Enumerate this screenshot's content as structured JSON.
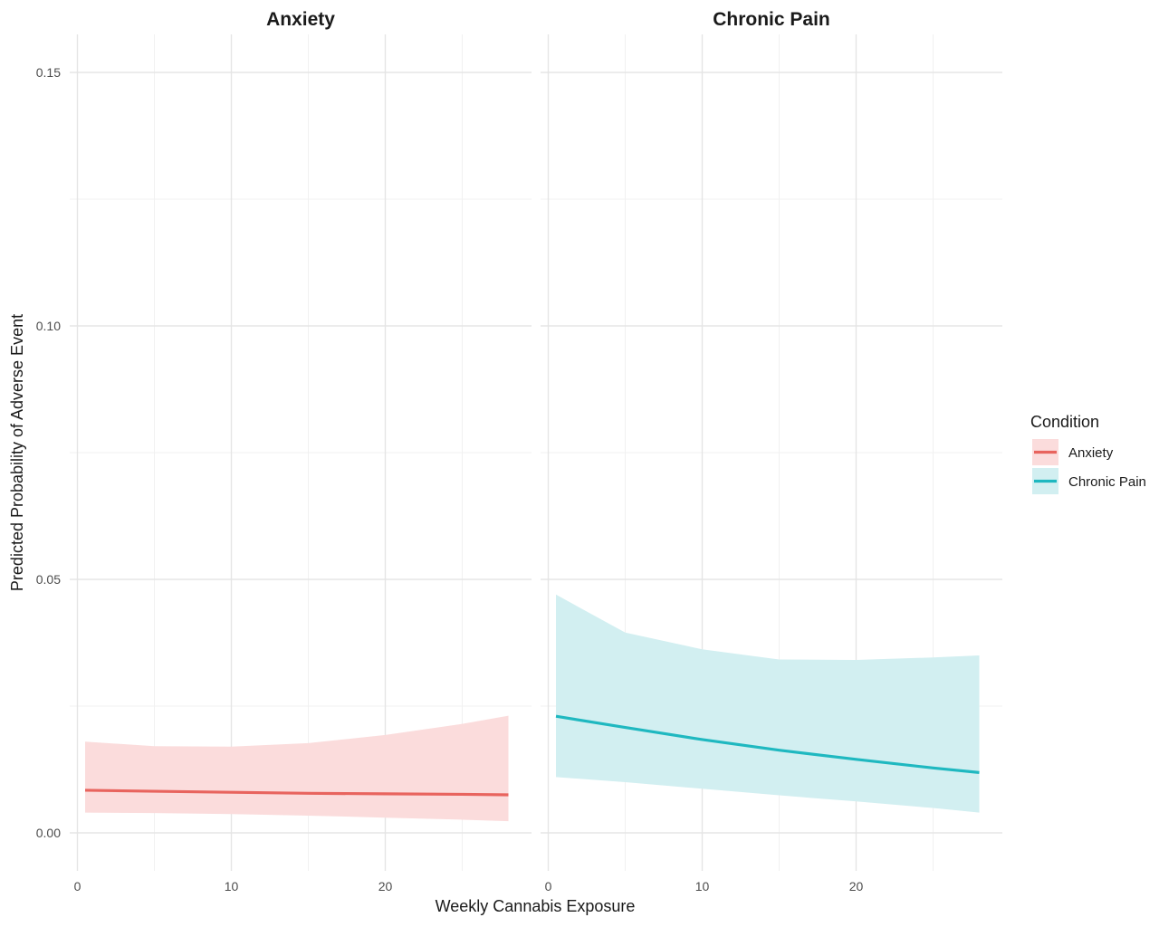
{
  "chart_data": {
    "type": "line",
    "facet_by": "Condition",
    "xlabel": "Weekly Cannabis Exposure",
    "ylabel": "Predicted Probability of Adverse Event",
    "xlim": [
      -0.5,
      29.5
    ],
    "ylim": [
      -0.0075,
      0.1575
    ],
    "x_ticks": [
      0,
      10,
      20
    ],
    "x_tick_labels": [
      "0",
      "10",
      "20"
    ],
    "y_ticks": [
      0.0,
      0.05,
      0.1,
      0.15
    ],
    "y_tick_labels": [
      "0.00",
      "0.05",
      "0.10",
      "0.15"
    ],
    "grid": true,
    "legend": {
      "title": "Condition",
      "placement": "right",
      "entries": [
        "Anxiety",
        "Chronic Pain"
      ]
    },
    "panels": [
      {
        "title": "Anxiety",
        "color": "#E8645E",
        "ribbon_color": "#FBDCDC",
        "x": [
          0.5,
          5,
          10,
          15,
          20,
          25,
          28
        ],
        "fit": [
          0.0084,
          0.0082,
          0.008,
          0.0078,
          0.0077,
          0.0076,
          0.0075
        ],
        "lower": [
          0.004,
          0.0039,
          0.0037,
          0.0034,
          0.003,
          0.0026,
          0.0023
        ],
        "upper": [
          0.018,
          0.0171,
          0.017,
          0.0177,
          0.0193,
          0.0215,
          0.0231
        ]
      },
      {
        "title": "Chronic Pain",
        "color": "#1FB8C0",
        "ribbon_color": "#D2EFF1",
        "x": [
          0.5,
          5,
          10,
          15,
          20,
          25,
          28
        ],
        "fit": [
          0.023,
          0.0208,
          0.0184,
          0.0163,
          0.0145,
          0.0128,
          0.0119
        ],
        "lower": [
          0.011,
          0.01,
          0.0087,
          0.0074,
          0.0062,
          0.0049,
          0.004
        ],
        "upper": [
          0.047,
          0.0395,
          0.0362,
          0.0342,
          0.0341,
          0.0346,
          0.035
        ]
      }
    ]
  }
}
